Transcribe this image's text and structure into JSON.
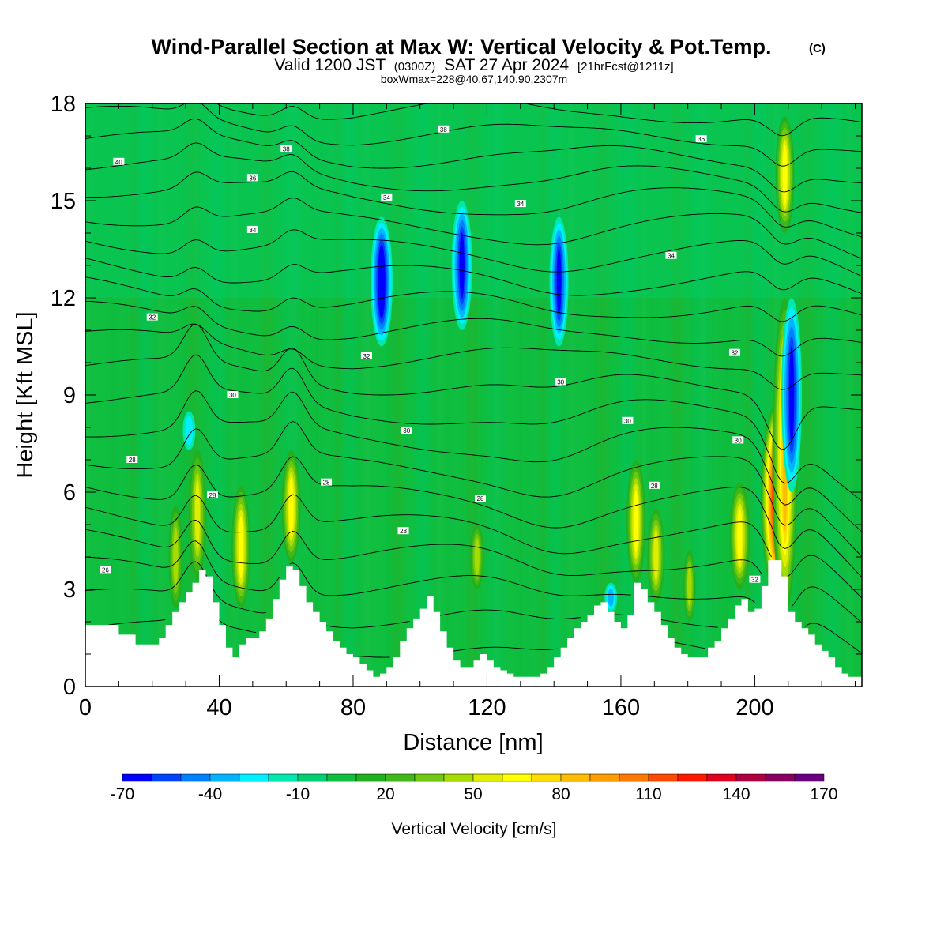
{
  "header": {
    "title": "Wind-Parallel Section at Max W: Vertical Velocity & Pot.Temp.",
    "title_mark": "(C)",
    "valid_prefix": "Valid 1200 JST",
    "valid_utc": "(0300Z)",
    "valid_date": "SAT 27 Apr 2024",
    "forecast_tag": "[21hrFcst@1211z]",
    "subtitle": "boxWmax=228@40.67,140.90,2307m"
  },
  "chart_data": {
    "type": "contour",
    "xlabel": "Distance [nm]",
    "ylabel": "Height [Kft MSL]",
    "xlim": [
      0,
      232
    ],
    "ylim": [
      0,
      18
    ],
    "x_ticks": [
      0,
      40,
      80,
      120,
      160,
      200
    ],
    "y_ticks": [
      0,
      3,
      6,
      9,
      12,
      15,
      18
    ],
    "colorbar": {
      "label": "Vertical Velocity [cm/s]",
      "tick_labels": [
        "-70",
        "-40",
        "-10",
        "20",
        "50",
        "80",
        "110",
        "140",
        "170"
      ],
      "levels": [
        -70,
        -60,
        -50,
        -40,
        -30,
        -20,
        -10,
        0,
        10,
        20,
        30,
        40,
        50,
        60,
        70,
        80,
        90,
        100,
        110,
        120,
        130,
        140,
        150,
        160,
        170
      ],
      "colors": [
        "#0000ff",
        "#0044ff",
        "#0080ff",
        "#00b4ff",
        "#00f0ff",
        "#00e8b0",
        "#00d070",
        "#10be40",
        "#20b020",
        "#40b818",
        "#70c810",
        "#a8dc00",
        "#e0ec00",
        "#ffff00",
        "#ffdc00",
        "#ffbc00",
        "#ff9c00",
        "#ff7800",
        "#ff4800",
        "#ff1800",
        "#e00020",
        "#b00040",
        "#880060",
        "#6a0080"
      ]
    },
    "terrain": {
      "x": [
        0,
        5,
        10,
        12,
        15,
        18,
        20,
        22,
        24,
        26,
        28,
        30,
        32,
        34,
        36,
        38,
        40,
        42,
        44,
        46,
        48,
        50,
        52,
        54,
        56,
        58,
        60,
        62,
        64,
        66,
        68,
        70,
        72,
        74,
        76,
        78,
        80,
        82,
        84,
        86,
        88,
        90,
        92,
        94,
        96,
        98,
        100,
        102,
        104,
        106,
        108,
        110,
        112,
        114,
        116,
        118,
        120,
        122,
        124,
        126,
        128,
        130,
        132,
        134,
        136,
        138,
        140,
        142,
        144,
        146,
        148,
        150,
        152,
        154,
        156,
        158,
        160,
        162,
        164,
        166,
        168,
        170,
        172,
        174,
        176,
        178,
        180,
        182,
        184,
        186,
        188,
        190,
        192,
        194,
        196,
        198,
        200,
        202,
        204,
        206,
        208,
        210,
        212,
        214,
        216,
        218,
        220,
        222,
        224,
        226,
        228,
        230,
        232
      ],
      "y": [
        1.9,
        1.9,
        1.6,
        1.6,
        1.3,
        1.3,
        1.3,
        1.5,
        1.9,
        2.3,
        2.6,
        2.9,
        3.2,
        3.6,
        3.4,
        2.6,
        1.9,
        1.2,
        0.9,
        1.3,
        1.5,
        1.5,
        1.7,
        2.1,
        2.7,
        3.3,
        3.7,
        3.6,
        3.1,
        2.6,
        2.3,
        2.0,
        1.7,
        1.4,
        1.2,
        1.0,
        0.9,
        0.7,
        0.5,
        0.3,
        0.4,
        0.6,
        0.9,
        1.4,
        1.8,
        2.1,
        2.4,
        2.8,
        2.3,
        1.7,
        1.2,
        0.8,
        0.6,
        0.6,
        0.8,
        1.0,
        0.8,
        0.6,
        0.5,
        0.4,
        0.3,
        0.3,
        0.3,
        0.3,
        0.4,
        0.6,
        0.9,
        1.2,
        1.5,
        1.8,
        2.0,
        2.2,
        2.5,
        2.6,
        2.3,
        2.0,
        1.8,
        2.2,
        3.2,
        3.0,
        2.6,
        2.3,
        1.9,
        1.5,
        1.2,
        1.0,
        0.9,
        0.9,
        0.9,
        1.2,
        1.4,
        1.8,
        2.1,
        2.5,
        2.7,
        2.3,
        2.4,
        3.1,
        3.9,
        3.9,
        3.4,
        2.3,
        2.0,
        1.8,
        1.6,
        1.3,
        1.1,
        0.9,
        0.6,
        0.4,
        0.3,
        0.3,
        0.3
      ]
    },
    "updraft_cores": [
      {
        "x": 27,
        "base": 2.4,
        "top": 5.6,
        "peak": 45
      },
      {
        "x": 33.5,
        "base": 3.3,
        "top": 7.3,
        "peak": 55
      },
      {
        "x": 46.5,
        "base": 2.4,
        "top": 6.2,
        "peak": 60
      },
      {
        "x": 61.5,
        "base": 3.8,
        "top": 7.3,
        "peak": 60
      },
      {
        "x": 117,
        "base": 3.0,
        "top": 5.0,
        "peak": 45
      },
      {
        "x": 164.5,
        "base": 3.2,
        "top": 7.0,
        "peak": 60
      },
      {
        "x": 170.5,
        "base": 2.6,
        "top": 5.5,
        "peak": 55
      },
      {
        "x": 180.5,
        "base": 2.0,
        "top": 4.2,
        "peak": 40
      },
      {
        "x": 195.5,
        "base": 3.0,
        "top": 6.3,
        "peak": 65
      },
      {
        "x": 207,
        "base": 2.8,
        "top": 8.8,
        "peak": 155
      },
      {
        "x": 209,
        "base": 2.2,
        "top": 12.0,
        "peak": 80
      },
      {
        "x": 209,
        "base": 14.0,
        "top": 17.6,
        "peak": 60
      }
    ],
    "downdraft_cores": [
      {
        "x": 88.5,
        "base": 10.5,
        "top": 14.5,
        "peak": -70
      },
      {
        "x": 112.5,
        "base": 11.0,
        "top": 15.0,
        "peak": -65
      },
      {
        "x": 141.5,
        "base": 10.5,
        "top": 14.5,
        "peak": -60
      },
      {
        "x": 211,
        "base": 6.0,
        "top": 12.0,
        "peak": -65
      },
      {
        "x": 31,
        "base": 7.3,
        "top": 8.5,
        "peak": -25
      },
      {
        "x": 157,
        "base": 2.3,
        "top": 3.2,
        "peak": -35
      }
    ],
    "theta_levels_C": [
      24,
      26,
      28,
      30,
      32,
      34,
      36,
      38,
      40
    ],
    "theta_contour_labels": [
      "26",
      "28",
      "30",
      "32",
      "34",
      "36",
      "38",
      "40"
    ]
  }
}
